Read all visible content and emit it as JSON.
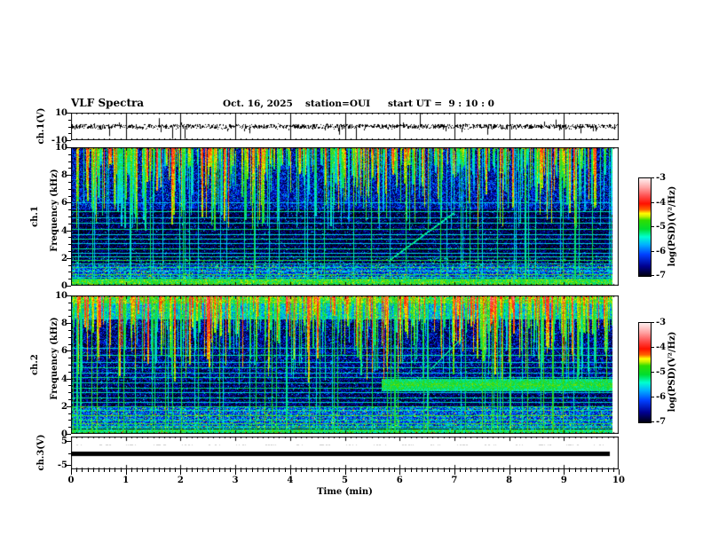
{
  "title": {
    "main": "VLF Spectra",
    "date": "Oct. 16, 2025",
    "station": "station=OUI",
    "start_ut": "start UT =  9 : 10 : 0"
  },
  "axes": {
    "x": {
      "label": "Time (min)",
      "ticks": [
        0,
        1,
        2,
        3,
        4,
        5,
        6,
        7,
        8,
        9,
        10
      ],
      "minor_step": 0.1,
      "range": [
        0,
        10
      ]
    },
    "ch1v": {
      "label": "ch.1(V)",
      "ticks": [
        10,
        -10
      ],
      "minor_ticks": [
        5,
        0,
        -5
      ],
      "range": [
        -10,
        10
      ]
    },
    "spec1": {
      "ch": "ch.1",
      "freq": "Frequency (kHz)",
      "ticks": [
        10,
        8,
        6,
        4,
        2,
        0
      ],
      "minor_step": 0.5,
      "range": [
        0,
        10
      ]
    },
    "spec2": {
      "ch": "ch.2",
      "freq": "Frequency (kHz)",
      "ticks": [
        10,
        8,
        6,
        4,
        2,
        0
      ],
      "minor_step": 0.5,
      "range": [
        0,
        10
      ]
    },
    "ch3v": {
      "label": "ch.3(V)",
      "ticks": [
        5,
        -5
      ],
      "minor_ticks": [
        0
      ],
      "range": [
        -7,
        7
      ]
    }
  },
  "colorbars": [
    {
      "label": "log(PSD)(V²/Hz)",
      "ticks": [
        -3,
        -4,
        -5,
        -6,
        -7
      ],
      "range": [
        -7,
        -3
      ]
    },
    {
      "label": "log(PSD)(V²/Hz)",
      "ticks": [
        -3,
        -4,
        -5,
        -6,
        -7
      ],
      "range": [
        -7,
        -3
      ]
    }
  ],
  "chart_data": [
    {
      "type": "line",
      "name": "ch1-voltage",
      "x_range": [
        0,
        10
      ],
      "y_range": [
        -10,
        10
      ],
      "baseline_v": 0,
      "noise_v": 1.2,
      "spikes": [
        {
          "x": 0.7,
          "v": -7
        },
        {
          "x": 1.6,
          "v": 6
        },
        {
          "x": 1.85,
          "v": -9
        },
        {
          "x": 2.07,
          "v": -9
        },
        {
          "x": 3.25,
          "v": -5
        },
        {
          "x": 4.9,
          "v": -6
        },
        {
          "x": 5.2,
          "v": -9
        },
        {
          "x": 6.37,
          "v": 10
        },
        {
          "x": 7.0,
          "v": -9
        },
        {
          "x": 7.6,
          "v": -6
        },
        {
          "x": 8.85,
          "v": 5
        },
        {
          "x": 9.3,
          "v": -5
        }
      ]
    },
    {
      "type": "heatmap",
      "name": "ch1-spectrogram",
      "x_range": [
        0,
        10
      ],
      "y_range": [
        0,
        10
      ],
      "value_range": [
        -7,
        -3
      ],
      "data_end_min": 9.89,
      "zones": [
        {
          "f_min": 5.5,
          "f_max": 10,
          "base": -6.45
        },
        {
          "f_min": 1.5,
          "f_max": 5.5,
          "base": -6.85
        },
        {
          "f_min": 0.45,
          "f_max": 1.5,
          "base": -6.15
        }
      ],
      "sferics": {
        "count": 500,
        "max_depth_khz": 6,
        "value_min": -5.2,
        "value_max": -3.7
      },
      "vertical_lines": {
        "count": 55,
        "value_min": -5.7,
        "value_max": -5.0
      },
      "horizontal_lines": [
        [
          6.0,
          -5.7
        ],
        [
          5.4,
          -5.35
        ],
        [
          4.95,
          -5.6
        ],
        [
          4.55,
          -5.45
        ],
        [
          4.1,
          -5.25
        ],
        [
          3.75,
          -5.55
        ],
        [
          3.4,
          -5.35
        ],
        [
          3.05,
          -5.6
        ],
        [
          2.7,
          -5.25
        ],
        [
          2.4,
          -5.55
        ],
        [
          2.1,
          -5.35
        ],
        [
          1.85,
          -5.05
        ],
        [
          1.6,
          -5.45
        ],
        [
          1.35,
          -5.15
        ],
        [
          1.1,
          -5.45
        ],
        [
          0.85,
          -4.95
        ],
        [
          0.65,
          -5.25
        ],
        [
          0.5,
          -5.1
        ]
      ],
      "bottom_band": {
        "f_max": 0.45,
        "value": -4.9
      },
      "riser": {
        "x0": 5.8,
        "f0": 1.8,
        "x1": 7.0,
        "f1": 5.3,
        "value": -5.3
      }
    },
    {
      "type": "heatmap",
      "name": "ch2-spectrogram",
      "x_range": [
        0,
        10
      ],
      "y_range": [
        0,
        10
      ],
      "value_range": [
        -7,
        -3
      ],
      "data_end_min": 9.89,
      "zones": [
        {
          "f_min": 9.4,
          "f_max": 10,
          "base": -4.95
        },
        {
          "f_min": 8.3,
          "f_max": 9.4,
          "base": -5.6
        },
        {
          "f_min": 3.9,
          "f_max": 8.3,
          "base": -6.6
        },
        {
          "f_min": 2.0,
          "f_max": 3.9,
          "base": -6.75
        },
        {
          "f_min": 0.45,
          "f_max": 2.0,
          "base": -6.1
        }
      ],
      "sferics": {
        "count": 520,
        "max_depth_khz": 6.5,
        "value_min": -5.0,
        "value_max": -3.5
      },
      "vertical_lines": {
        "count": 70,
        "value_min": -5.5,
        "value_max": -4.8
      },
      "horizontal_lines": [
        [
          6.2,
          -5.5
        ],
        [
          5.7,
          -5.3
        ],
        [
          5.2,
          -5.5
        ],
        [
          4.8,
          -5.3
        ],
        [
          4.45,
          -5.5
        ],
        [
          4.1,
          -5.3
        ],
        [
          3.7,
          -5.45
        ],
        [
          3.35,
          -5.2
        ],
        [
          3.0,
          -5.5
        ],
        [
          2.6,
          -5.3
        ],
        [
          2.3,
          -5.45
        ],
        [
          2.0,
          -5.1
        ],
        [
          1.7,
          -5.3
        ],
        [
          1.35,
          -4.85
        ],
        [
          1.05,
          -5.2
        ],
        [
          0.8,
          -4.95
        ],
        [
          0.6,
          -5.15
        ],
        [
          0.45,
          -5.3
        ]
      ],
      "bottom_band": {
        "f_max": 0.35,
        "value": -5.1
      },
      "band": {
        "f_min": 3.1,
        "f_max": 4.0,
        "x_start": 5.67,
        "value": -4.9
      },
      "riser": {
        "x0": 6.55,
        "f0": 4.6,
        "x1": 7.15,
        "f1": 7.0,
        "value": -5.3
      }
    },
    {
      "type": "line",
      "name": "ch3-voltage",
      "x_range": [
        0,
        10
      ],
      "y_range": [
        -7,
        7
      ],
      "constant_v": 0,
      "line_end_min": 9.83,
      "line_thickness_px": 5
    }
  ]
}
